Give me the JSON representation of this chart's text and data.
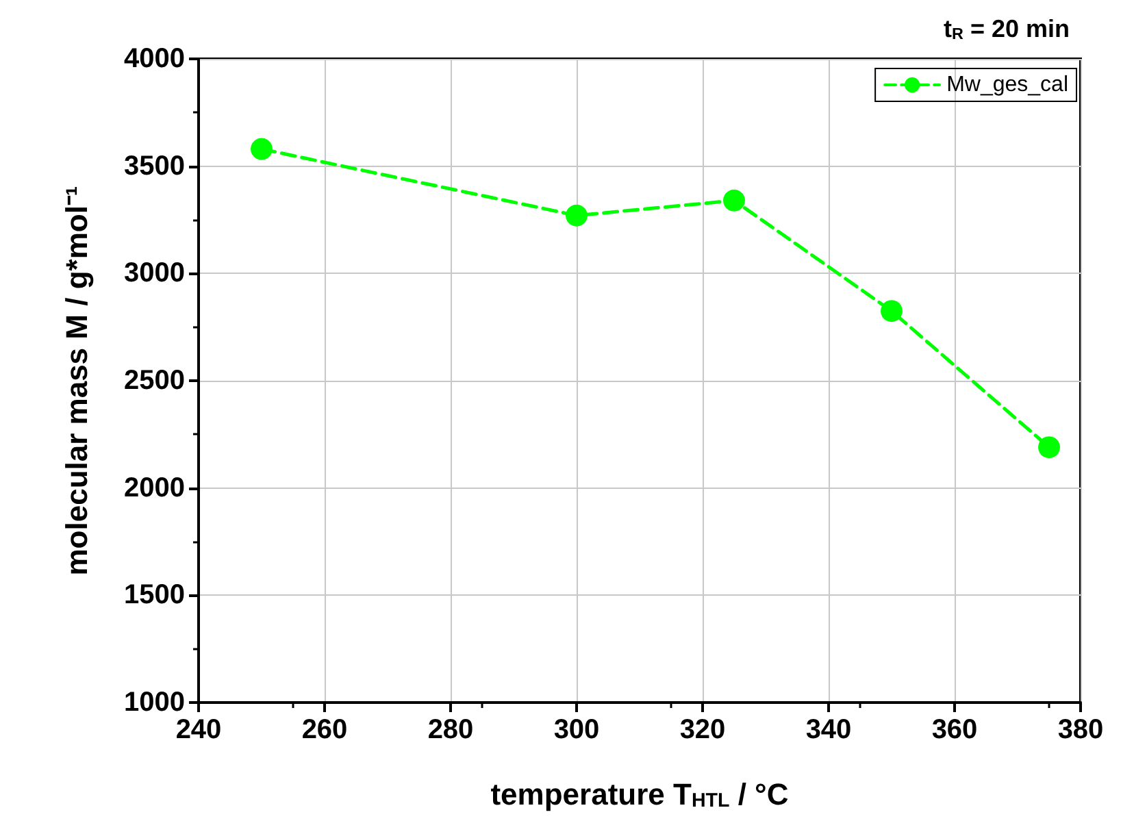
{
  "chart_data": {
    "type": "line",
    "title": "t$_{R}$ = 20 min",
    "xlabel": "temperature T$_{HTL}$ / °C",
    "ylabel": "molecular mass M / g*mol⁻¹",
    "x": [
      250,
      300,
      325,
      350,
      375
    ],
    "series": [
      {
        "name": "Mw_ges_cal",
        "color": "#00ff00",
        "values": [
          3580,
          3270,
          3340,
          2825,
          2190
        ]
      }
    ],
    "xlim": [
      240,
      380
    ],
    "xticks": [
      240,
      260,
      280,
      300,
      320,
      340,
      360,
      380
    ],
    "ylim": [
      1000,
      4000
    ],
    "yticks": [
      1000,
      1500,
      2000,
      2500,
      3000,
      3500,
      4000
    ],
    "grid": true,
    "legend": "top right",
    "marker": "circle",
    "line_style": "dashed"
  }
}
